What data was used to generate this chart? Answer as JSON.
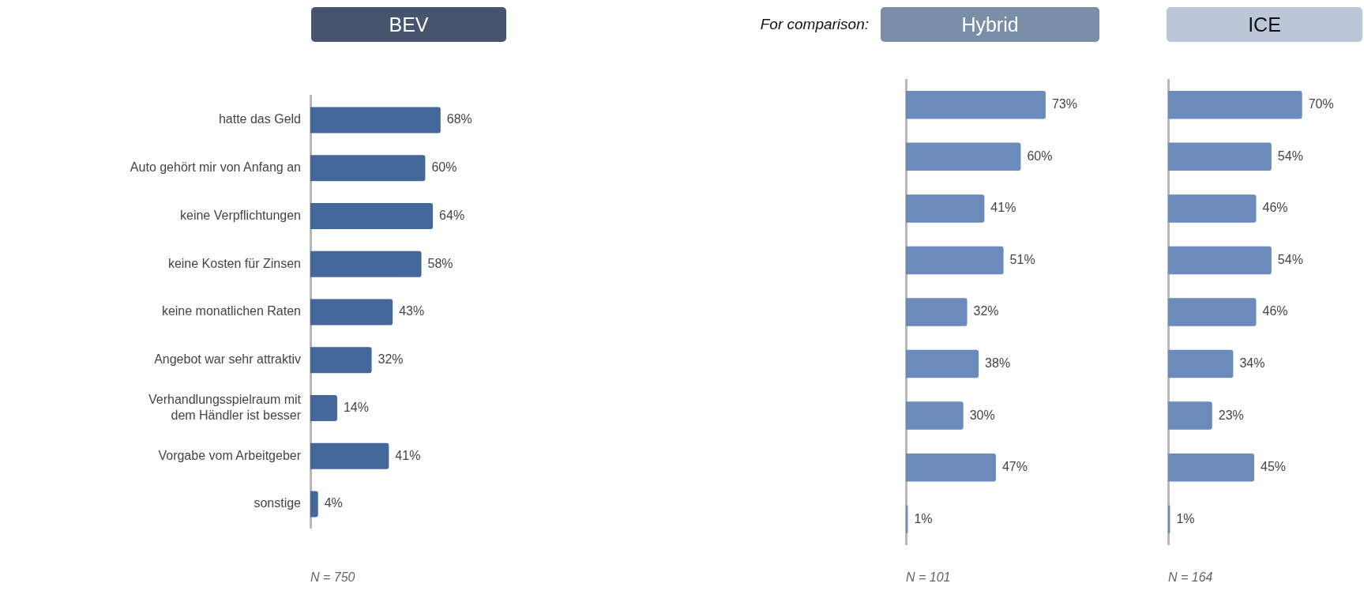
{
  "chart_data": [
    {
      "type": "bar",
      "orientation": "horizontal",
      "title": "BEV",
      "categories": [
        "hatte das Geld",
        "Auto gehört mir von Anfang an",
        "keine Verpflichtungen",
        "keine Kosten für Zinsen",
        "keine monatlichen Raten",
        "Angebot war sehr attraktiv",
        "Verhandlungsspielraum mit dem Händler ist besser",
        "Vorgabe vom Arbeitgeber",
        "sonstige"
      ],
      "values": [
        68,
        60,
        64,
        58,
        43,
        32,
        14,
        41,
        4
      ],
      "value_labels": [
        "68%",
        "60%",
        "64%",
        "58%",
        "43%",
        "32%",
        "14%",
        "41%",
        "4%"
      ],
      "color": "#44679c",
      "tick_labels": "y",
      "grid": false,
      "legend": false,
      "annotations": [
        "N = 750"
      ]
    },
    {
      "type": "bar",
      "orientation": "horizontal",
      "title": "Hybrid",
      "subtitle": "For comparison:",
      "categories": [
        null,
        null,
        null,
        null,
        null,
        null,
        null,
        null,
        null
      ],
      "values": [
        73,
        60,
        41,
        51,
        32,
        38,
        30,
        47,
        1
      ],
      "value_labels": [
        "73%",
        "60%",
        "41%",
        "51%",
        "32%",
        "38%",
        "30%",
        "47%",
        "1%"
      ],
      "color": "#6a8bbb",
      "tick_labels": false,
      "grid": false,
      "legend": false,
      "annotations": [
        "N = 101"
      ]
    },
    {
      "type": "bar",
      "orientation": "horizontal",
      "title": "ICE",
      "categories": [
        null,
        null,
        null,
        null,
        null,
        null,
        null,
        null,
        null
      ],
      "values": [
        70,
        54,
        46,
        54,
        46,
        34,
        23,
        45,
        1
      ],
      "value_labels": [
        "70%",
        "54%",
        "46%",
        "54%",
        "46%",
        "34%",
        "23%",
        "45%",
        "1%"
      ],
      "color": "#6a8bbb",
      "tick_labels": false,
      "grid": false,
      "legend": false,
      "annotations": [
        "N = 164"
      ]
    }
  ]
}
